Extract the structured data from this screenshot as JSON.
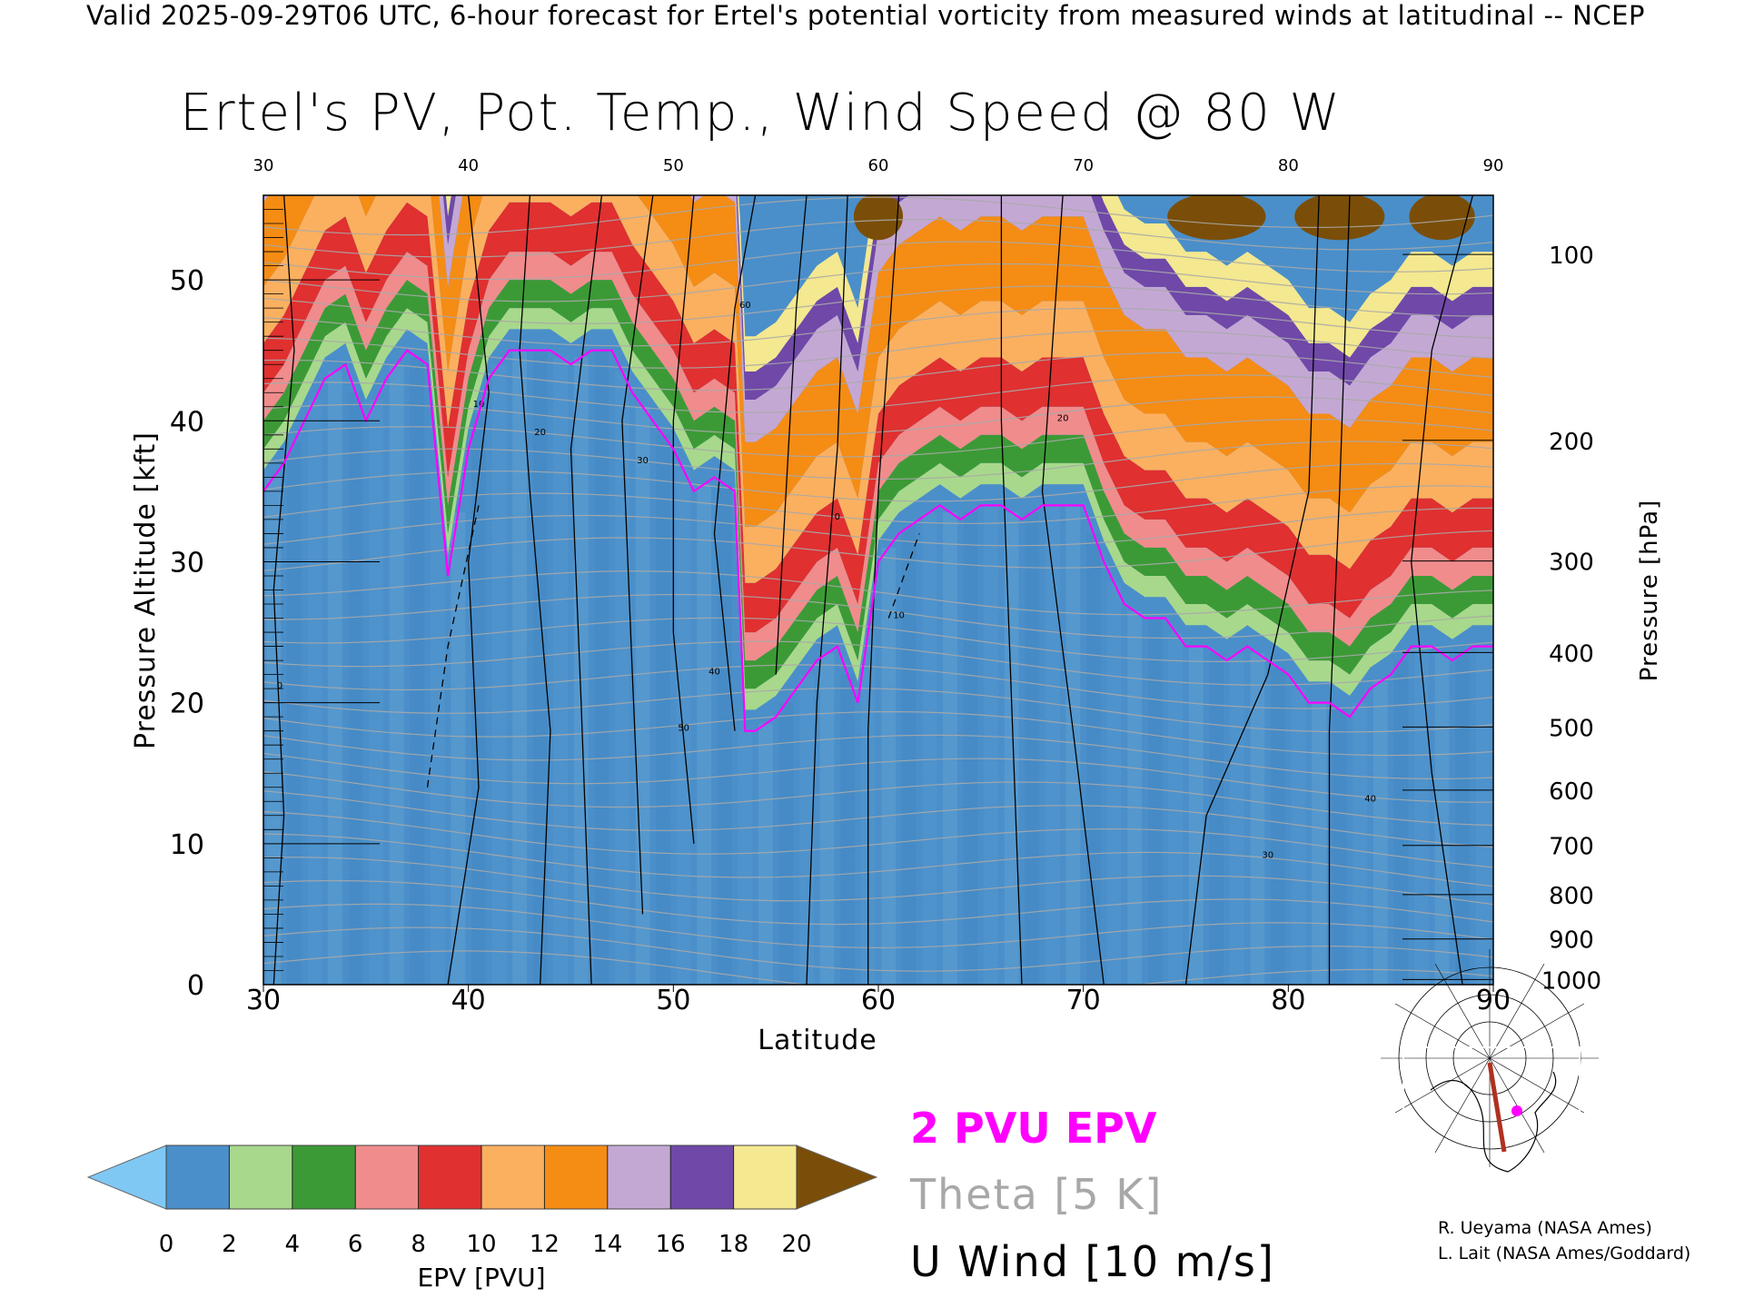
{
  "banner": "Valid 2025-09-29T06 UTC, 6-hour forecast for Ertel's potential vorticity from measured winds at latitudinal -- NCEP",
  "chart_data": {
    "type": "heatmap",
    "title": "Ertel's PV, Pot. Temp., Wind Speed @ 80 W",
    "xlabel": "Latitude",
    "ylabel": "Pressure Altitude [kft]",
    "ylabel_right": "Pressure [hPa]",
    "xlim": [
      30,
      90
    ],
    "ylim": [
      0,
      56
    ],
    "x_ticks": [
      30,
      40,
      50,
      60,
      70,
      80,
      90
    ],
    "x_ticks_top": [
      30,
      40,
      50,
      60,
      70,
      80,
      90
    ],
    "y_ticks": [
      0,
      10,
      20,
      30,
      40,
      50
    ],
    "pressure_ticks": [
      100,
      200,
      300,
      400,
      500,
      600,
      700,
      800,
      900,
      1000
    ],
    "colorbar": {
      "label": "EPV [PVU]",
      "tick_labels": [
        0,
        2,
        4,
        6,
        8,
        10,
        12,
        14,
        16,
        18,
        20
      ],
      "extend": "both",
      "colors": [
        "#4a8fca",
        "#a8d88c",
        "#3c9a36",
        "#f08c8c",
        "#e03030",
        "#fbb060",
        "#f58c14",
        "#c4a8d4",
        "#7048a8",
        "#f4e890"
      ],
      "under_color": "#80c8f4",
      "over_color": "#7a4e08"
    },
    "series": [
      {
        "name": "2 PVU EPV",
        "x": [
          30,
          31,
          32,
          33,
          34,
          35,
          36,
          37,
          38,
          39,
          40,
          41,
          42,
          43,
          44,
          45,
          46,
          47,
          48,
          49,
          50,
          51,
          52,
          53,
          53.5,
          54,
          55,
          56,
          57,
          58,
          59,
          60,
          61,
          62,
          63,
          64,
          65,
          66,
          67,
          68,
          69,
          70,
          71,
          72,
          73,
          74,
          75,
          76,
          77,
          78,
          79,
          80,
          81,
          82,
          83,
          84,
          85,
          86,
          87,
          88,
          89,
          90
        ],
        "y": [
          35,
          37,
          40,
          43,
          44,
          40,
          43,
          45,
          44,
          29,
          38,
          43,
          45,
          45,
          45,
          44,
          45,
          45,
          42,
          40,
          38,
          35,
          36,
          35,
          18,
          18,
          19,
          21,
          23,
          24,
          20,
          30,
          32,
          33,
          34,
          33,
          34,
          34,
          33,
          34,
          34,
          34,
          30,
          27,
          26,
          26,
          24,
          24,
          23,
          24,
          23,
          22,
          20,
          20,
          19,
          21,
          22,
          24,
          24,
          23,
          24,
          24
        ]
      }
    ],
    "wind_contour_labels": [
      "0",
      "10",
      "20",
      "30",
      "40",
      "50",
      "60"
    ],
    "legend": [
      "2 PVU EPV",
      "Theta [5 K]",
      "U Wind [10 m/s]"
    ],
    "colors": {
      "pv_line": "#ff00ff",
      "theta": "#a8a8a8",
      "wind": "#000000"
    }
  },
  "legend": {
    "pv_label": "2 PVU EPV",
    "theta_label": "Theta [5 K]",
    "wind_label": "U Wind [10 m/s]"
  },
  "credits": {
    "line1": "R. Ueyama (NASA Ames)",
    "line2": "L. Lait (NASA Ames/Goddard)"
  }
}
